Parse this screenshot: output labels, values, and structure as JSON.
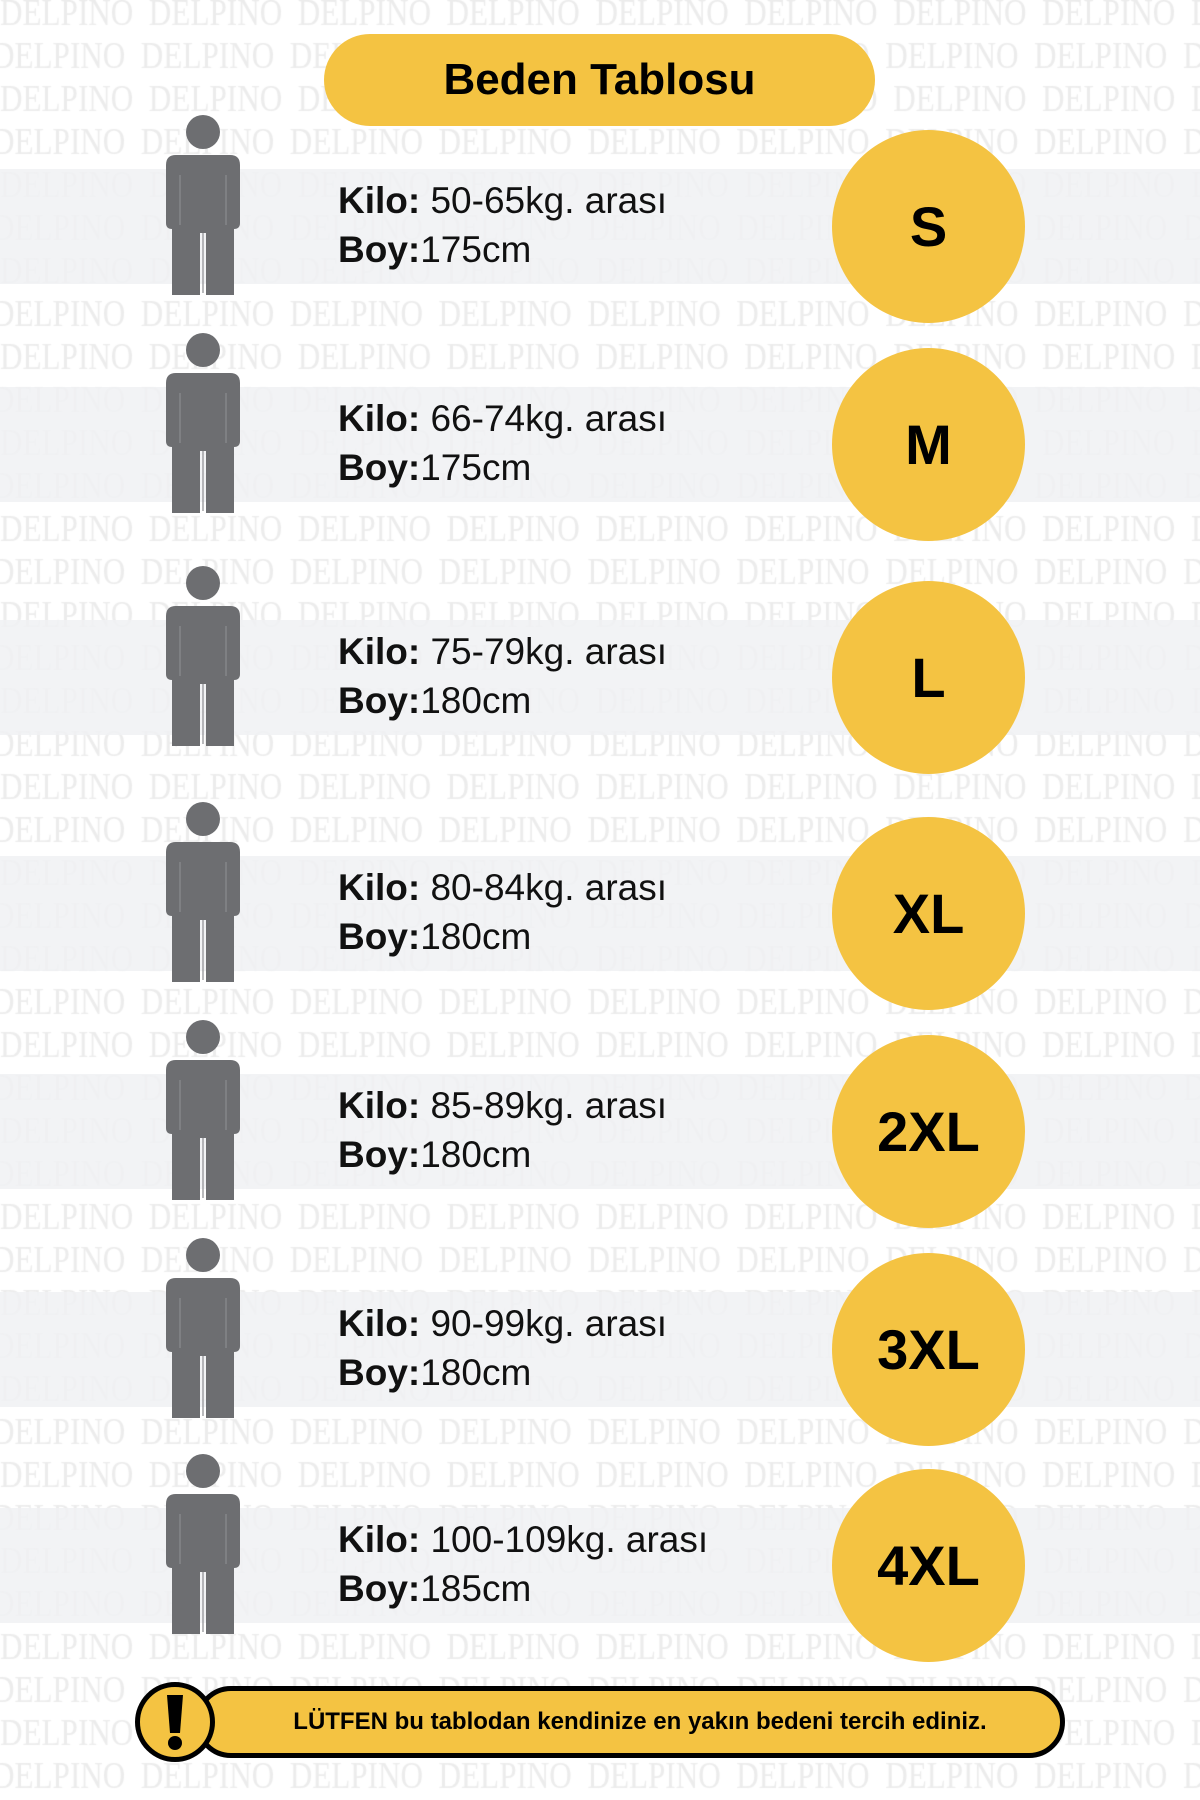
{
  "watermark": "DELPINO",
  "title": "Beden Tablosu",
  "colors": {
    "accent": "#f4c342",
    "figure": "#6d6e71",
    "band": "#f1f2f4"
  },
  "labels": {
    "weight": "Kilo:",
    "height": "Boy:"
  },
  "rows": [
    {
      "size": "S",
      "weight": "50-65kg. arası",
      "height": "175cm"
    },
    {
      "size": "M",
      "weight": "66-74kg. arası",
      "height": "175cm"
    },
    {
      "size": "L",
      "weight": "75-79kg. arası",
      "height": "180cm"
    },
    {
      "size": "XL",
      "weight": "80-84kg. arası",
      "height": "180cm"
    },
    {
      "size": "2XL",
      "weight": "85-89kg. arası",
      "height": "180cm"
    },
    {
      "size": "3XL",
      "weight": "90-99kg. arası",
      "height": "180cm"
    },
    {
      "size": "4XL",
      "weight": "100-109kg. arası",
      "height": "185cm"
    }
  ],
  "notice": {
    "icon": "exclamation-icon",
    "text": "LÜTFEN bu tablodan kendinize en yakın bedeni tercih ediniz."
  }
}
